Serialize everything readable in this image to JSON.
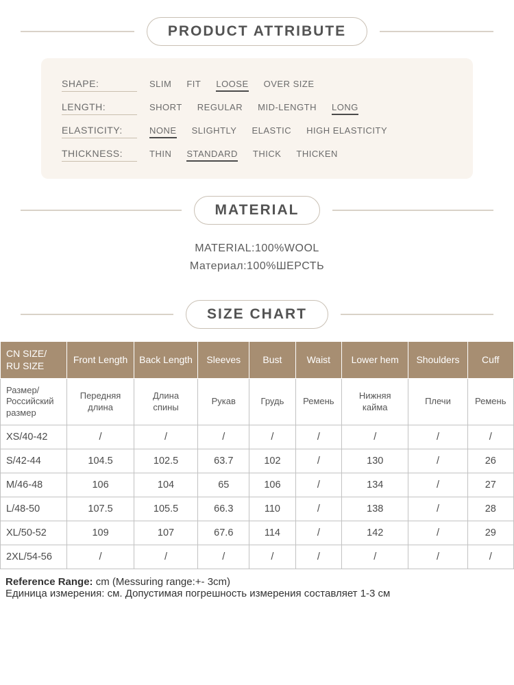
{
  "colors": {
    "background": "#ffffff",
    "card_bg": "#f9f4ee",
    "divider": "#d9d2c8",
    "pill_border": "#c9c0b4",
    "text": "#4a4a4a",
    "table_header_bg": "#a78e72",
    "table_header_text": "#ffffff",
    "table_border": "#c2c2c2",
    "underline": "#4a4a4a"
  },
  "sections": {
    "attribute_title": "PRODUCT ATTRIBUTE",
    "material_title": "MATERIAL",
    "size_title": "SIZE CHART"
  },
  "attributes": [
    {
      "label": "SHAPE:",
      "options": [
        "SLIM",
        "FIT",
        "LOOSE",
        "OVER SIZE"
      ],
      "selected": "LOOSE"
    },
    {
      "label": "LENGTH:",
      "options": [
        "SHORT",
        "REGULAR",
        "MID-LENGTH",
        "LONG"
      ],
      "selected": "LONG"
    },
    {
      "label": "ELASTICITY:",
      "options": [
        "NONE",
        "SLIGHTLY",
        "ELASTIC",
        "HIGH ELASTICITY"
      ],
      "selected": "NONE"
    },
    {
      "label": "THICKNESS:",
      "options": [
        "THIN",
        "STANDARD",
        "THICK",
        "THICKEN"
      ],
      "selected": "STANDARD"
    }
  ],
  "material": {
    "line1": "MATERIAL:100%WOOL",
    "line2": "Материал:100%ШЕРСТЬ"
  },
  "size_chart": {
    "headers_en": [
      "CN SIZE/\nRU SIZE",
      "Front Length",
      "Back Length",
      "Sleeves",
      "Bust",
      "Waist",
      "Lower hem",
      "Shoulders",
      "Cuff"
    ],
    "headers_ru": [
      "Размер/\nРоссийский\nразмер",
      "Передняя\nдлина",
      "Длина\nспины",
      "Рукав",
      "Грудь",
      "Ремень",
      "Нижняя\nкайма",
      "Плечи",
      "Ремень"
    ],
    "rows": [
      [
        "XS/40-42",
        "/",
        "/",
        "/",
        "/",
        "/",
        "/",
        "/",
        "/"
      ],
      [
        "S/42-44",
        "104.5",
        "102.5",
        "63.7",
        "102",
        "/",
        "130",
        "/",
        "26"
      ],
      [
        "M/46-48",
        "106",
        "104",
        "65",
        "106",
        "/",
        "134",
        "/",
        "27"
      ],
      [
        "L/48-50",
        "107.5",
        "105.5",
        "66.3",
        "110",
        "/",
        "138",
        "/",
        "28"
      ],
      [
        "XL/50-52",
        "109",
        "107",
        "67.6",
        "114",
        "/",
        "142",
        "/",
        "29"
      ],
      [
        "2XL/54-56",
        "/",
        "/",
        "/",
        "/",
        "/",
        "/",
        "/",
        "/"
      ]
    ],
    "col_widths": [
      "13%",
      "13%",
      "12.5%",
      "10%",
      "9%",
      "9%",
      "13%",
      "11.5%",
      "9%"
    ]
  },
  "footnote": {
    "en_label": "Reference Range: ",
    "en_rest": "cm (Messuring range:+- 3cm)",
    "ru": "Единица измерения: см. Допустимая погрешность измерения составляет 1-3 см"
  }
}
